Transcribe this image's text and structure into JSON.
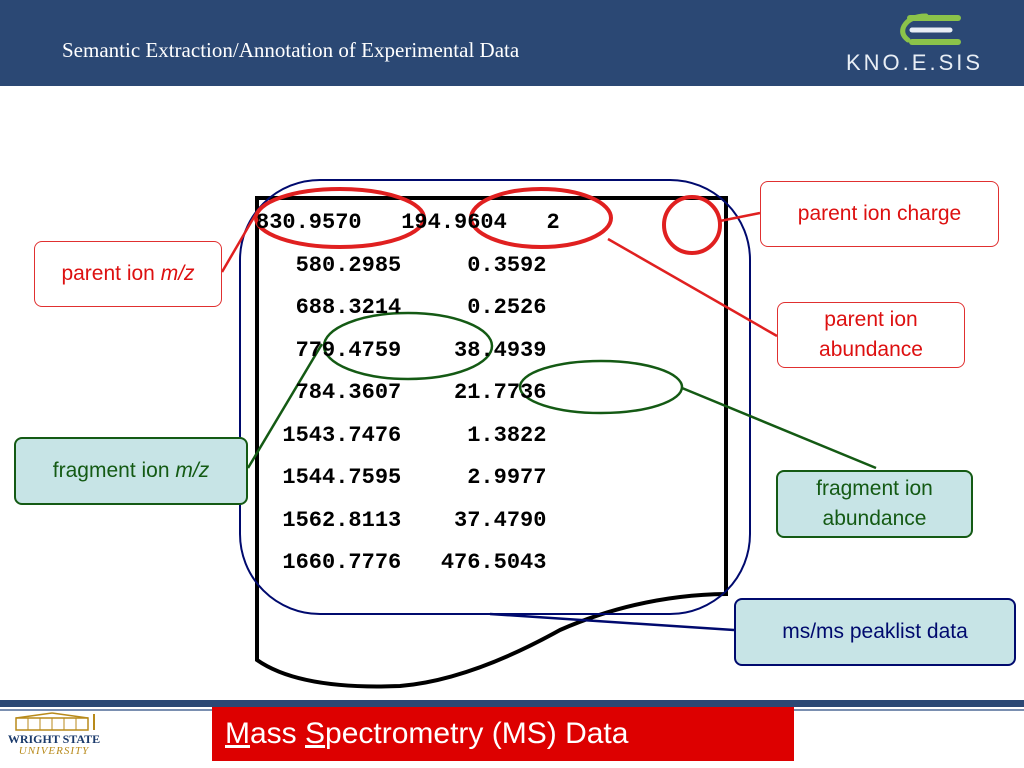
{
  "header": {
    "title": "Semantic Extraction/Annotation of Experimental Data",
    "logo_text": "KNO.E.SIS"
  },
  "peaklist": {
    "lines": [
      "830.9570   194.9604   2",
      "   580.2985     0.3592",
      "   688.3214     0.2526",
      "   779.4759    38.4939",
      "   784.3607    21.7736",
      "  1543.7476     1.3822",
      "  1544.7595     2.9977",
      "  1562.8113    37.4790",
      "  1660.7776   476.5043"
    ]
  },
  "callouts": {
    "parent_ion_mz": {
      "prefix": "parent ion ",
      "italic": "m/z"
    },
    "parent_ion_charge": "parent ion charge",
    "parent_ion_abundance": [
      "parent ion",
      "abundance"
    ],
    "fragment_ion_mz": {
      "prefix": "fragment ion ",
      "italic": "m/z"
    },
    "fragment_ion_abundance": [
      "fragment ion",
      "abundance"
    ],
    "msms_peaklist": "ms/ms peaklist data"
  },
  "footer": {
    "title_m": "M",
    "title_ass": "ass ",
    "title_s": "S",
    "title_rest": "pectrometry (MS) Data",
    "wsu_line1": "WRIGHT STATE",
    "wsu_line2": "UNIVERSITY"
  },
  "colors": {
    "header_bg": "#2b4874",
    "annotation_red": "#e02020",
    "annotation_green": "#145a14",
    "annotation_navy": "#000a6e",
    "callout_fill": "#c7e4e6",
    "footer_red": "#dd0000"
  }
}
